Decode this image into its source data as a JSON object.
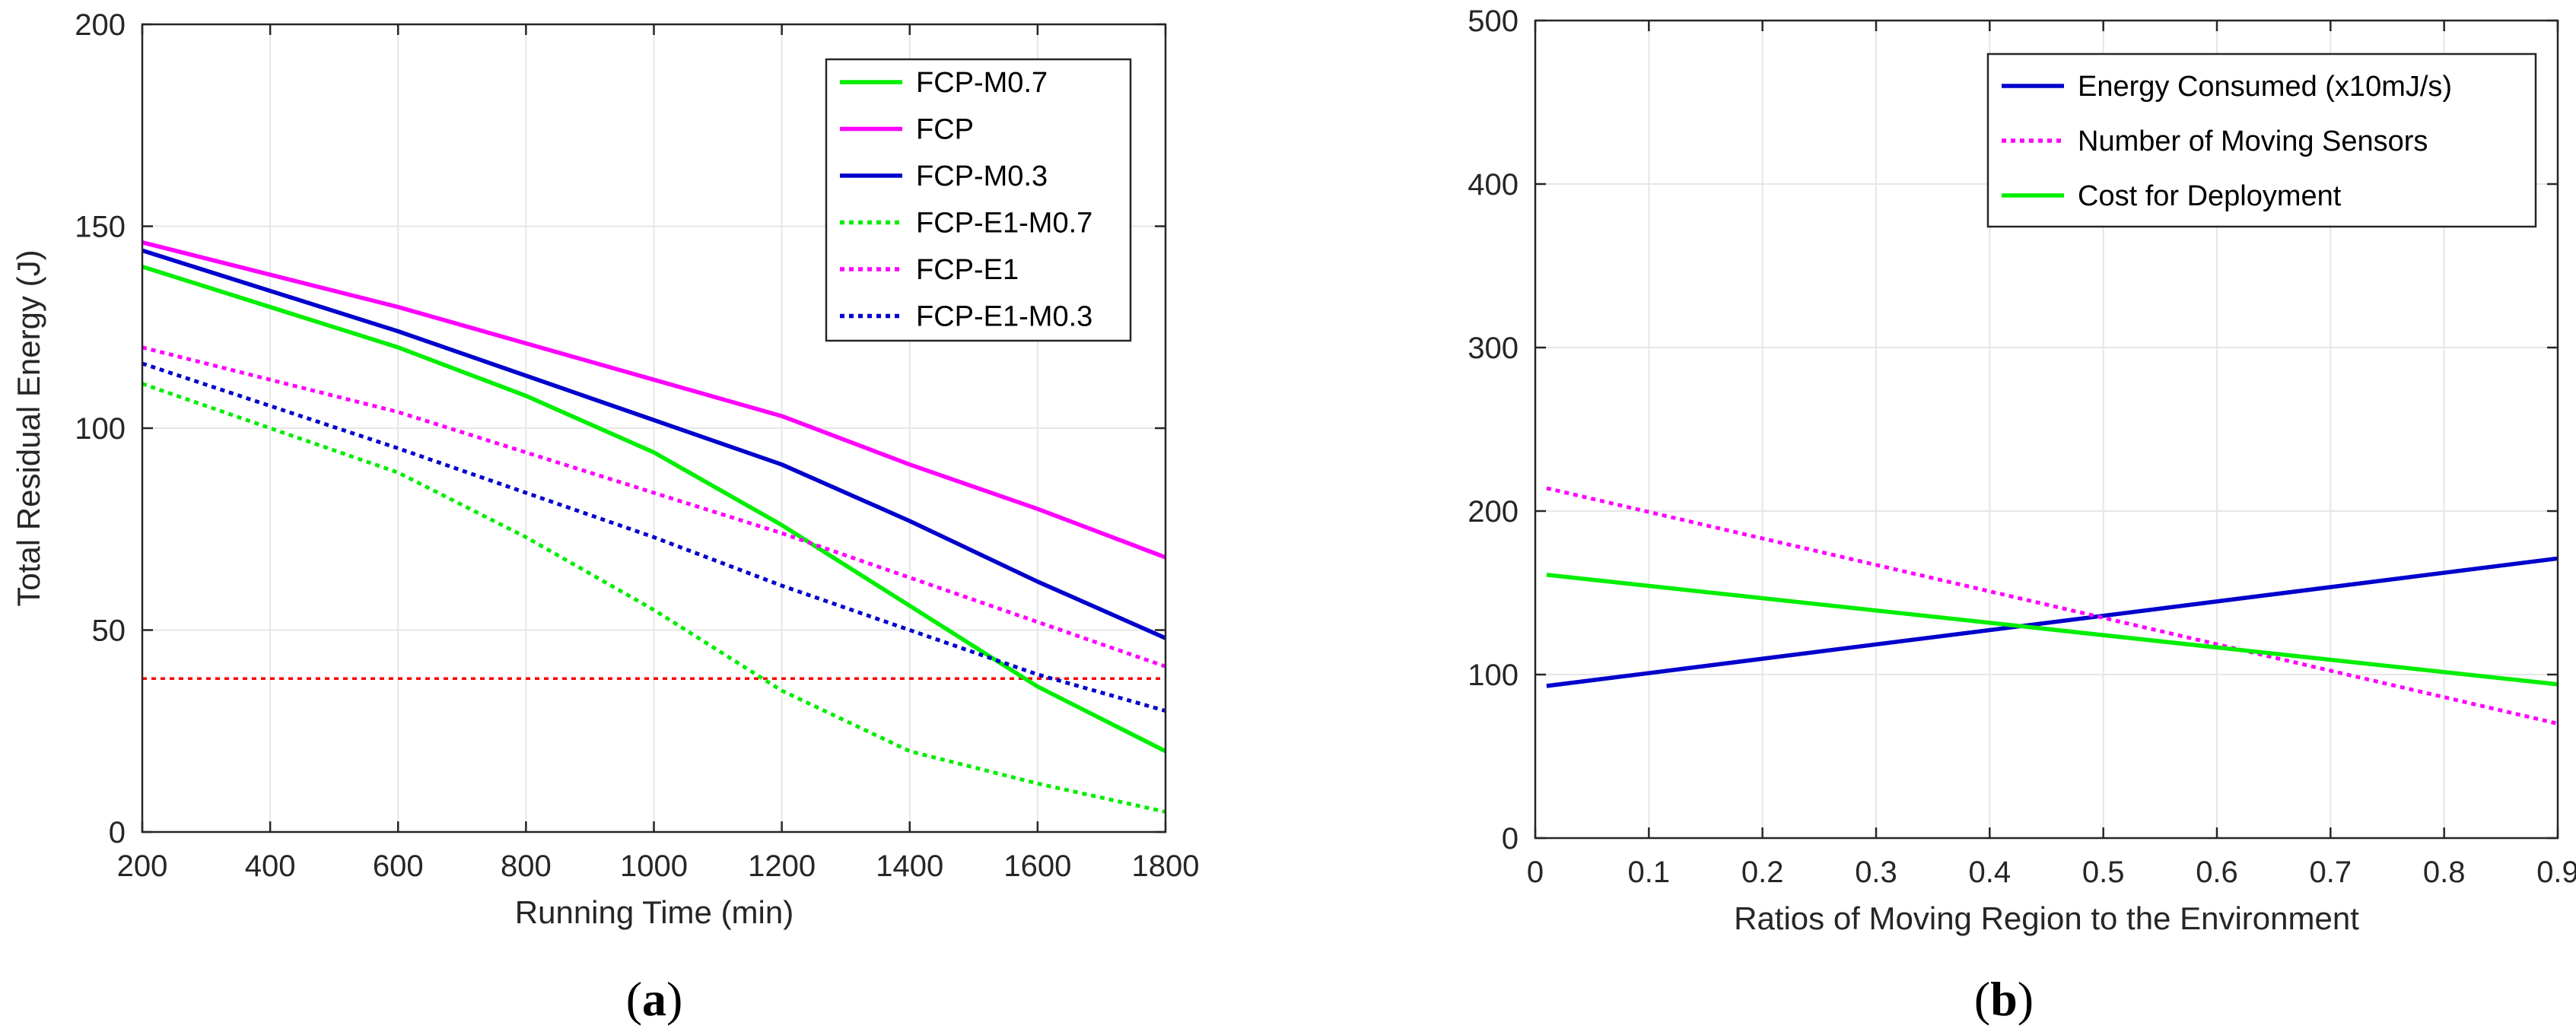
{
  "panels": {
    "a": {
      "label_open": "(",
      "label_letter": "a",
      "label_close": ")"
    },
    "b": {
      "label_open": "(",
      "label_letter": "b",
      "label_close": ")"
    }
  },
  "chart_data": [
    {
      "id": "a",
      "type": "line",
      "xlabel": "Running Time (min)",
      "ylabel": "Total Residual Energy (J)",
      "xlim": [
        200,
        1800
      ],
      "ylim": [
        0,
        200
      ],
      "xticks": [
        200,
        400,
        600,
        800,
        1000,
        1200,
        1400,
        1600,
        1800
      ],
      "yticks": [
        0,
        50,
        100,
        150,
        200
      ],
      "grid": true,
      "legend_position": "top-right",
      "x": [
        200,
        600,
        800,
        1000,
        1200,
        1400,
        1600,
        1800
      ],
      "series": [
        {
          "name": "FCP-M0.7",
          "color": "#00ee00",
          "dash": "solid",
          "values": [
            140,
            120,
            108,
            94,
            76,
            56,
            36,
            20
          ]
        },
        {
          "name": "FCP",
          "color": "#ff00ff",
          "dash": "solid",
          "values": [
            146,
            130,
            121,
            112,
            103,
            91,
            80,
            68
          ]
        },
        {
          "name": "FCP-M0.3",
          "color": "#0000cc",
          "dash": "solid",
          "values": [
            144,
            124,
            113,
            102,
            91,
            77,
            62,
            48
          ]
        },
        {
          "name": "FCP-E1-M0.7",
          "color": "#00ee00",
          "dash": "dotted",
          "values": [
            111,
            89,
            73,
            55,
            35,
            20,
            12,
            5
          ]
        },
        {
          "name": "FCP-E1",
          "color": "#ff00ff",
          "dash": "dotted",
          "values": [
            120,
            104,
            94,
            84,
            74,
            63,
            52,
            41
          ]
        },
        {
          "name": "FCP-E1-M0.3",
          "color": "#0000cc",
          "dash": "dotted",
          "values": [
            116,
            95,
            84,
            73,
            61,
            50,
            39,
            30
          ]
        }
      ],
      "reference_line": {
        "y": 38,
        "color": "#ff0000",
        "dash": "dotted"
      }
    },
    {
      "id": "b",
      "type": "line",
      "xlabel": "Ratios of Moving Region to the Environment",
      "ylabel": "",
      "xlim": [
        0,
        0.9
      ],
      "ylim": [
        0,
        500
      ],
      "xticks": [
        0,
        0.1,
        0.2,
        0.3,
        0.4,
        0.5,
        0.6,
        0.7,
        0.8,
        0.9
      ],
      "xtick_labels": [
        "0",
        "0.1",
        "0.2",
        "0.3",
        "0.4",
        "0.5",
        "0.6",
        "0.7",
        "0.8",
        "0.9"
      ],
      "yticks": [
        0,
        100,
        200,
        300,
        400,
        500
      ],
      "grid": true,
      "legend_position": "top-right",
      "series": [
        {
          "name": "Energy Consumed (x10mJ/s)",
          "color": "#0000cc",
          "dash": "solid",
          "x": [
            0.01,
            0.9
          ],
          "values": [
            93,
            171
          ]
        },
        {
          "name": "Number of Moving Sensors",
          "color": "#ff00ff",
          "dash": "dotted",
          "x": [
            0.01,
            0.9
          ],
          "values": [
            214,
            70
          ]
        },
        {
          "name": "Cost for Deployment",
          "color": "#00ee00",
          "dash": "solid",
          "x": [
            0.01,
            0.9
          ],
          "values": [
            161,
            94
          ]
        }
      ]
    }
  ]
}
